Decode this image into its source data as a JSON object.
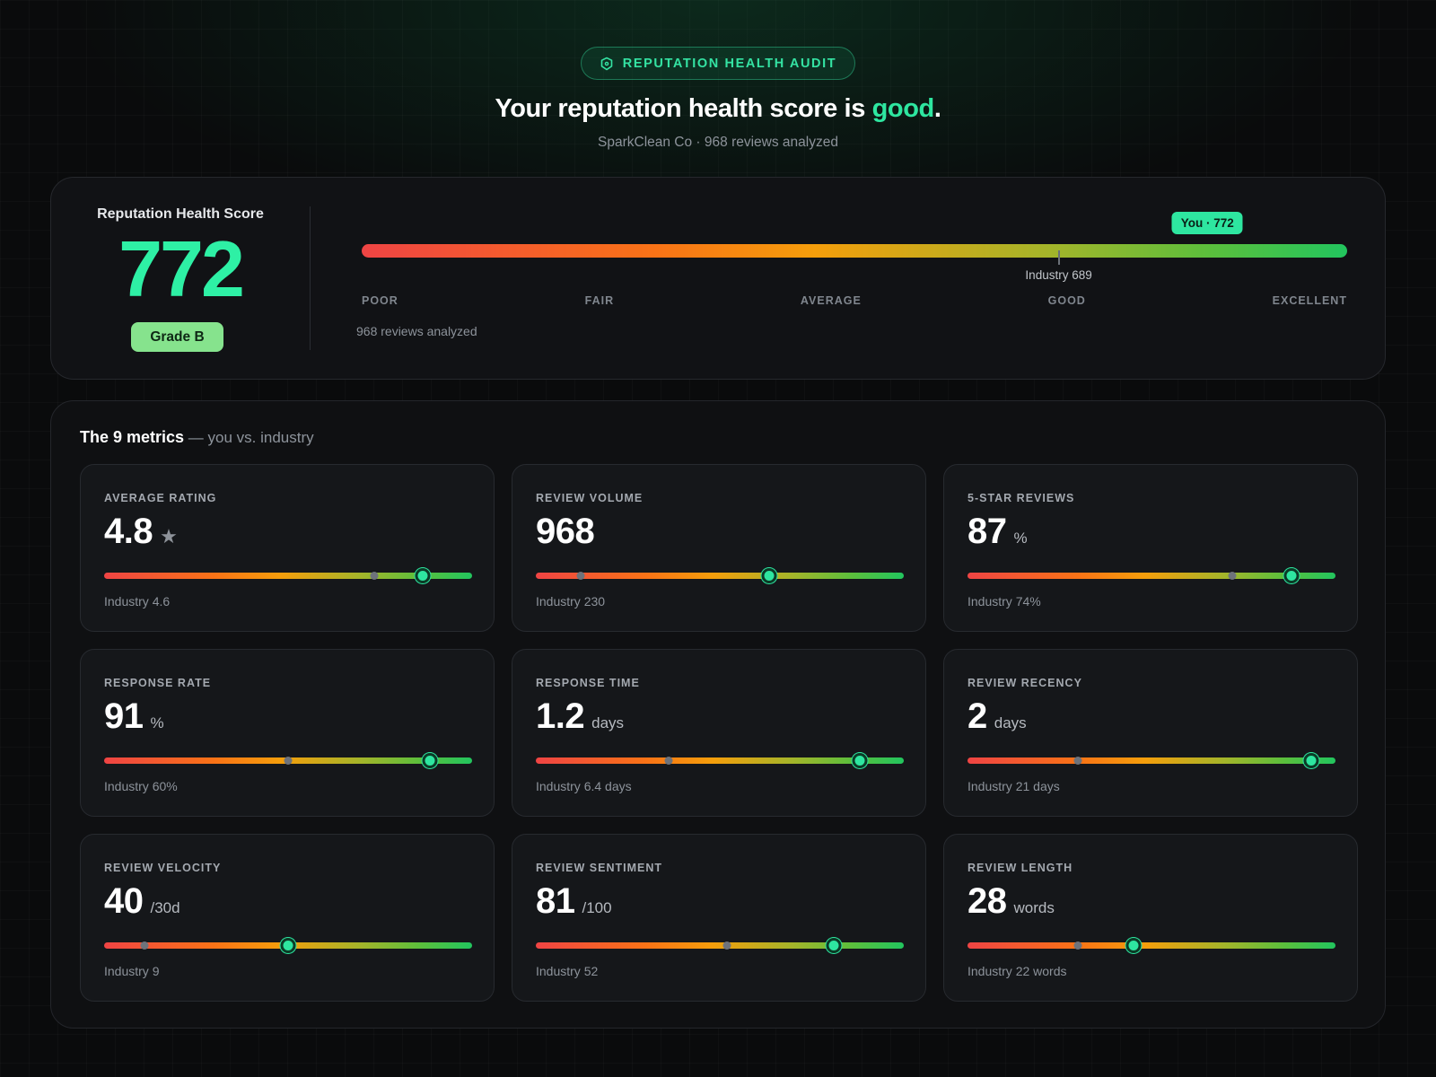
{
  "header": {
    "badge_label": "REPUTATION HEALTH AUDIT",
    "headline_prefix": "Your reputation health score is ",
    "headline_status": "good",
    "headline_suffix": ".",
    "subline": "SparkClean Co · 968 reviews analyzed"
  },
  "score": {
    "label": "Reputation Health Score",
    "value": "772",
    "grade": "Grade B",
    "you_tag": "You · 772",
    "industry_label": "Industry 689",
    "you_score": 772,
    "industry_score": 689,
    "scale_min": 300,
    "scale_max": 850,
    "bands": [
      "POOR",
      "FAIR",
      "AVERAGE",
      "GOOD",
      "EXCELLENT"
    ],
    "analyzed": "968 reviews analyzed"
  },
  "metrics_section": {
    "title": "The 9 metrics",
    "subtitle": " — you vs. industry"
  },
  "metrics": [
    {
      "label": "AVERAGE RATING",
      "value": "4.8",
      "unit": "★",
      "industry": "Industry 4.6",
      "you_pos": 0.867,
      "industry_pos": 0.733
    },
    {
      "label": "REVIEW VOLUME",
      "value": "968",
      "unit": "",
      "industry": "Industry 230",
      "you_pos": 0.633,
      "industry_pos": 0.122
    },
    {
      "label": "5-STAR REVIEWS",
      "value": "87",
      "unit": "%",
      "industry": "Industry 74%",
      "you_pos": 0.88,
      "industry_pos": 0.72
    },
    {
      "label": "RESPONSE RATE",
      "value": "91",
      "unit": "%",
      "industry": "Industry 60%",
      "you_pos": 0.885,
      "industry_pos": 0.5
    },
    {
      "label": "RESPONSE TIME",
      "value": "1.2",
      "unit": "days",
      "industry": "Industry 6.4 days",
      "you_pos": 0.88,
      "industry_pos": 0.36
    },
    {
      "label": "REVIEW RECENCY",
      "value": "2",
      "unit": "days",
      "industry": "Industry 21 days",
      "you_pos": 0.935,
      "industry_pos": 0.3
    },
    {
      "label": "REVIEW VELOCITY",
      "value": "40",
      "unit": "/30d",
      "industry": "Industry 9",
      "you_pos": 0.5,
      "industry_pos": 0.11
    },
    {
      "label": "REVIEW SENTIMENT",
      "value": "81",
      "unit": "/100",
      "industry": "Industry 52",
      "you_pos": 0.81,
      "industry_pos": 0.52
    },
    {
      "label": "REVIEW LENGTH",
      "value": "28",
      "unit": "words",
      "industry": "Industry 22 words",
      "you_pos": 0.45,
      "industry_pos": 0.3
    }
  ],
  "colors": {
    "accent": "#2ee6a0",
    "grade_bg": "#86e38d",
    "bar_start": "#ef4444",
    "bar_mid": "#f59e0b",
    "bar_end": "#22c55e"
  }
}
